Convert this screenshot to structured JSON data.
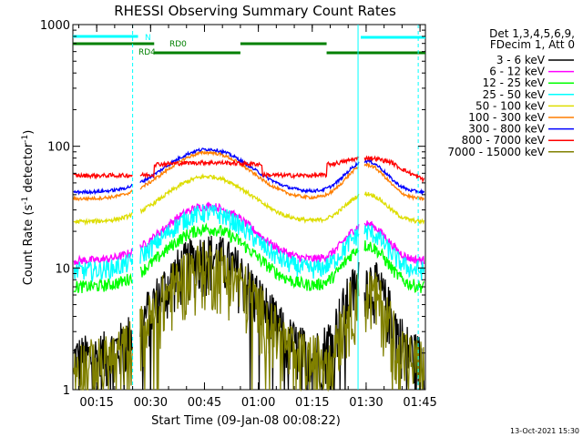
{
  "chart_data": {
    "type": "line",
    "title": "RHESSI Observing Summary Count Rates",
    "xlabel": "Start Time (09-Jan-08 00:08:22)",
    "ylabel_main": "Count Rate (s",
    "ylabel_sup1": "-1",
    "ylabel_mid": " detector",
    "ylabel_sup2": "-1",
    "ylabel_end": ")",
    "yscale": "log",
    "ylim": [
      1,
      1000
    ],
    "xlim": [
      "00:08:22",
      "01:46:30"
    ],
    "x_tick_labels": [
      "00:15",
      "00:30",
      "00:45",
      "01:00",
      "01:15",
      "01:30",
      "01:45"
    ],
    "y_tick_labels": [
      "1",
      "10",
      "100",
      "1000"
    ],
    "legend_header": [
      "Det 1,3,4,5,6,9,",
      "FDecim 1, Att 0"
    ],
    "series": [
      {
        "name": "3 - 6 keV",
        "color": "#000000"
      },
      {
        "name": "6 - 12 keV",
        "color": "#ff00ff"
      },
      {
        "name": "12 - 25 keV",
        "color": "#00ff00"
      },
      {
        "name": "25 - 50 keV",
        "color": "#00ffff"
      },
      {
        "name": "50 - 100 keV",
        "color": "#dddd00"
      },
      {
        "name": "100 - 300 keV",
        "color": "#ff7f00"
      },
      {
        "name": "300 - 800 keV",
        "color": "#0000ff"
      },
      {
        "name": "800 - 7000 keV",
        "color": "#ff0000"
      },
      {
        "name": "7000 - 15000 keV",
        "color": "#808000"
      }
    ],
    "flag_labels": {
      "n": "N",
      "rd0": "RD0",
      "rd4": "RD4"
    },
    "flag_colors": {
      "n": "#00ffff",
      "rd": "#008000"
    },
    "footer_date": "13-Oct-2021 15:30"
  }
}
